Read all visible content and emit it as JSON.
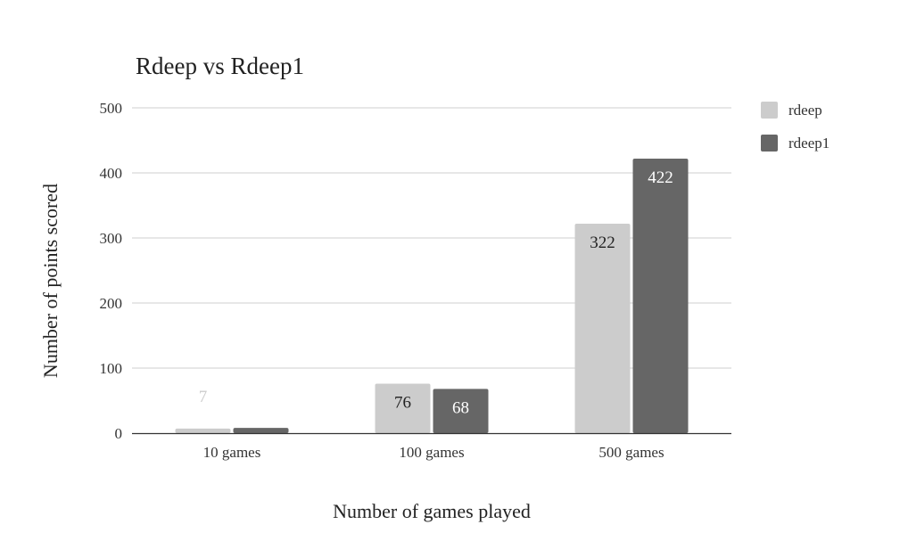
{
  "chart_data": {
    "type": "bar",
    "title": "Rdeep vs Rdeep1",
    "xlabel": "Number of games played",
    "ylabel": "Number of points scored",
    "categories": [
      "10 games",
      "100 games",
      "500 games"
    ],
    "series": [
      {
        "name": "rdeep",
        "values": [
          7,
          76,
          322
        ],
        "color": "#cccccc",
        "label_color": "#cccccc"
      },
      {
        "name": "rdeep1",
        "values": [
          8,
          68,
          422
        ],
        "color": "#666666",
        "label_color": "#ffffff"
      }
    ],
    "data_labels": [
      [
        "7",
        "76",
        "322"
      ],
      [
        "8",
        "68",
        "422"
      ]
    ],
    "ylim": [
      0,
      500
    ],
    "yticks": [
      "0",
      "100",
      "200",
      "300",
      "400",
      "500"
    ],
    "grid": true,
    "legend": "right"
  }
}
